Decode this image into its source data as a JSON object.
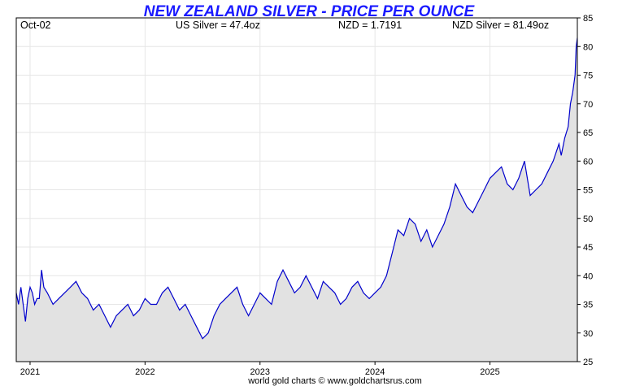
{
  "chart_data": {
    "type": "area",
    "title": "NEW ZEALAND SILVER - PRICE PER OUNCE",
    "header": {
      "date": "Oct-02",
      "us_silver": "US Silver = 47.4oz",
      "nzd": "NZD = 1.7191",
      "nzd_silver": "NZD Silver = 81.49oz"
    },
    "footer": "world gold charts © www.goldchartsrus.com",
    "xlabel": "",
    "ylabel": "",
    "ylim": [
      25,
      85
    ],
    "yticks": [
      "25",
      "30",
      "35",
      "40",
      "45",
      "50",
      "55",
      "60",
      "65",
      "70",
      "75",
      "80",
      "85"
    ],
    "xlim": [
      2020.88,
      2025.76
    ],
    "xticks": [
      {
        "label": "2021",
        "value": 2021.0
      },
      {
        "label": "2022",
        "value": 2022.0
      },
      {
        "label": "2023",
        "value": 2023.0
      },
      {
        "label": "2024",
        "value": 2024.0
      },
      {
        "label": "2025",
        "value": 2025.0
      }
    ],
    "grid": true,
    "line_color": "#0000cc",
    "fill_color": "#e2e2e2",
    "title_color": "#1a1aff",
    "series": [
      {
        "x": [
          2020.88,
          2020.9,
          2020.92,
          2020.94,
          2020.96,
          2020.98,
          2021.0,
          2021.02,
          2021.04,
          2021.06,
          2021.08,
          2021.1,
          2021.12,
          2021.15,
          2021.2,
          2021.25,
          2021.3,
          2021.35,
          2021.4,
          2021.45,
          2021.5,
          2021.55,
          2021.6,
          2021.65,
          2021.7,
          2021.75,
          2021.8,
          2021.85,
          2021.9,
          2021.95,
          2022.0,
          2022.05,
          2022.1,
          2022.15,
          2022.2,
          2022.25,
          2022.3,
          2022.35,
          2022.4,
          2022.45,
          2022.5,
          2022.55,
          2022.6,
          2022.65,
          2022.7,
          2022.75,
          2022.8,
          2022.85,
          2022.9,
          2022.95,
          2023.0,
          2023.05,
          2023.1,
          2023.15,
          2023.2,
          2023.25,
          2023.3,
          2023.35,
          2023.4,
          2023.45,
          2023.5,
          2023.55,
          2023.6,
          2023.65,
          2023.7,
          2023.75,
          2023.8,
          2023.85,
          2023.9,
          2023.95,
          2024.0,
          2024.05,
          2024.1,
          2024.15,
          2024.2,
          2024.25,
          2024.3,
          2024.35,
          2024.4,
          2024.45,
          2024.5,
          2024.55,
          2024.6,
          2024.65,
          2024.7,
          2024.75,
          2024.8,
          2024.85,
          2024.9,
          2024.95,
          2025.0,
          2025.05,
          2025.1,
          2025.15,
          2025.2,
          2025.25,
          2025.3,
          2025.35,
          2025.4,
          2025.45,
          2025.5,
          2025.55,
          2025.6,
          2025.62,
          2025.65,
          2025.68,
          2025.7,
          2025.72,
          2025.74,
          2025.75,
          2025.76
        ],
        "values": [
          37,
          35,
          38,
          35,
          32,
          36,
          38,
          37,
          35,
          36,
          36,
          41,
          38,
          37,
          35,
          36,
          37,
          38,
          39,
          37,
          36,
          34,
          35,
          33,
          31,
          33,
          34,
          35,
          33,
          34,
          36,
          35,
          35,
          37,
          38,
          36,
          34,
          35,
          33,
          31,
          29,
          30,
          33,
          35,
          36,
          37,
          38,
          35,
          33,
          35,
          37,
          36,
          35,
          39,
          41,
          39,
          37,
          38,
          40,
          38,
          36,
          39,
          38,
          37,
          35,
          36,
          38,
          39,
          37,
          36,
          37,
          38,
          40,
          44,
          48,
          47,
          50,
          49,
          46,
          48,
          45,
          47,
          49,
          52,
          56,
          54,
          52,
          51,
          53,
          55,
          57,
          58,
          59,
          56,
          55,
          57,
          60,
          54,
          55,
          56,
          58,
          60,
          63,
          61,
          64,
          66,
          70,
          72,
          75,
          80,
          81.5
        ]
      }
    ]
  }
}
